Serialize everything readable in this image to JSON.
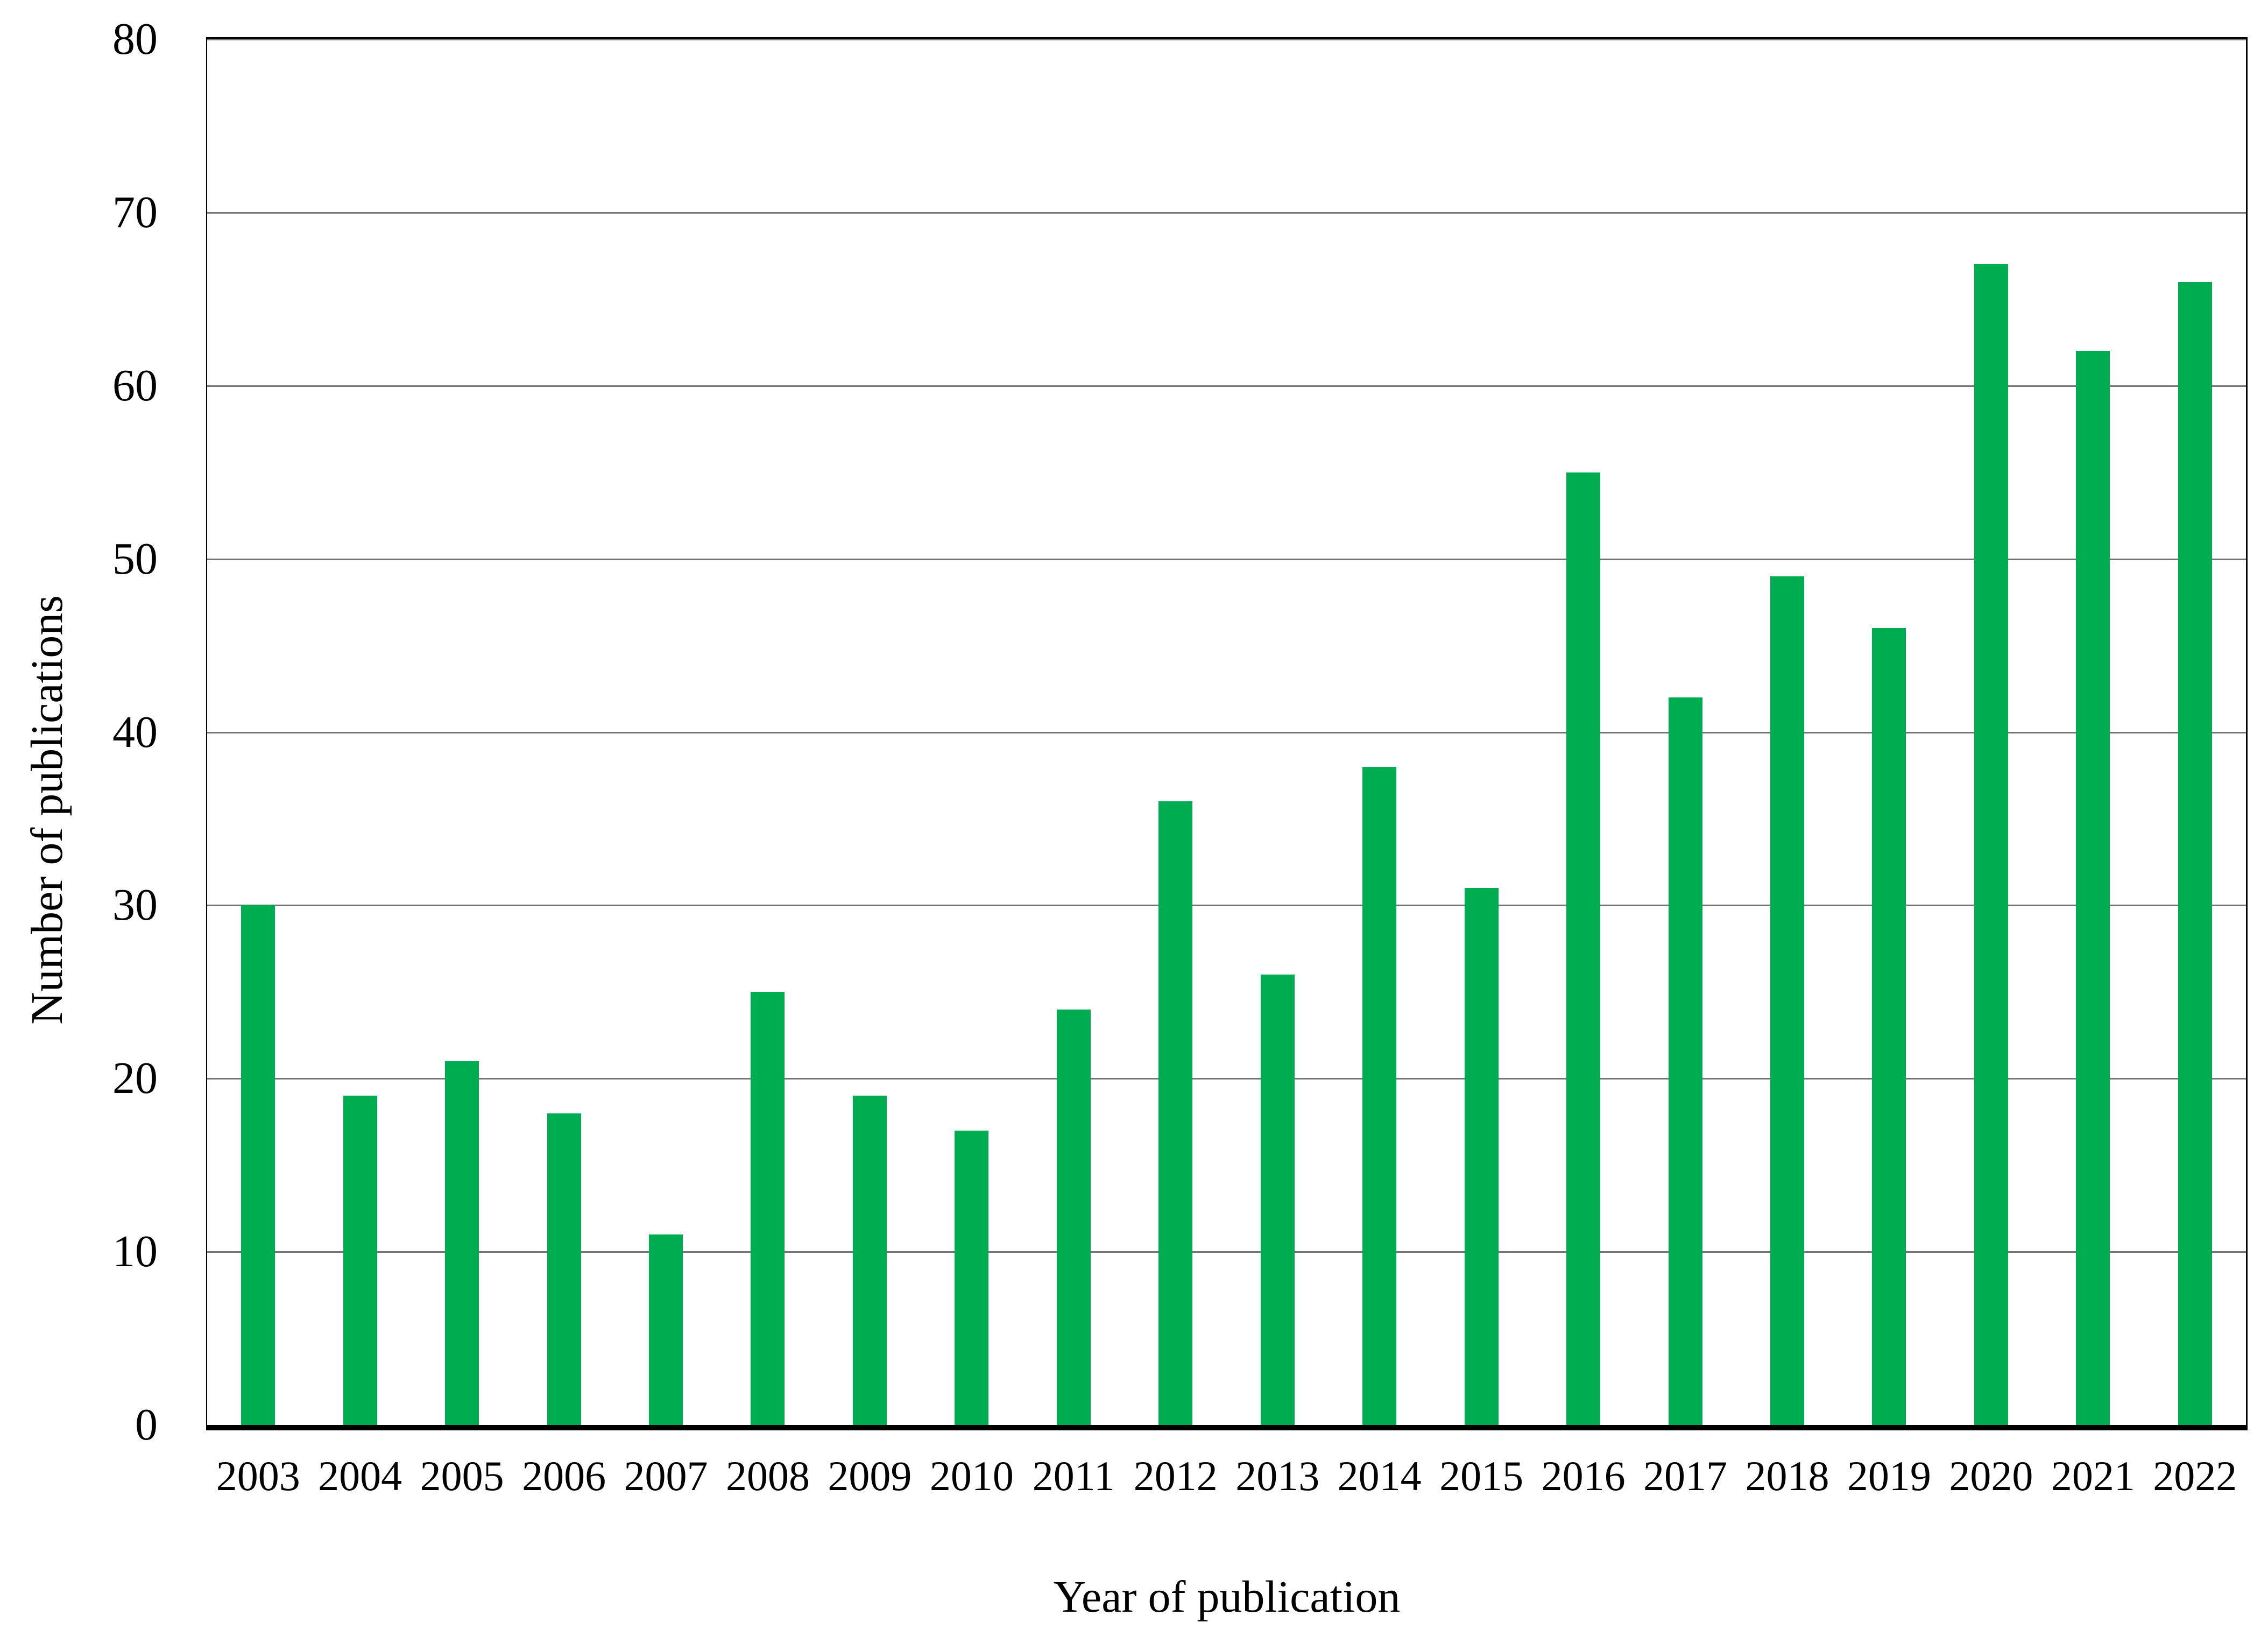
{
  "chart_data": {
    "type": "bar",
    "title": "",
    "xlabel": "Year of publication",
    "ylabel": "Number of publications",
    "categories": [
      "2003",
      "2004",
      "2005",
      "2006",
      "2007",
      "2008",
      "2009",
      "2010",
      "2011",
      "2012",
      "2013",
      "2014",
      "2015",
      "2016",
      "2017",
      "2018",
      "2019",
      "2020",
      "2021",
      "2022"
    ],
    "values": [
      30,
      19,
      21,
      18,
      11,
      25,
      19,
      17,
      24,
      36,
      26,
      38,
      31,
      55,
      42,
      49,
      46,
      67,
      62,
      66
    ],
    "ylim": [
      0,
      80
    ],
    "y_ticks": [
      0,
      10,
      20,
      30,
      40,
      50,
      60,
      70,
      80
    ],
    "grid": "horizontal",
    "legend_position": "none",
    "bar_color": "#00AC50",
    "gridline_color": "#757575",
    "axis_color": "#000000",
    "background_color": "#FFFFFF"
  }
}
